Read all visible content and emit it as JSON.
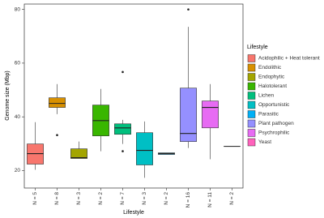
{
  "chart_data": {
    "type": "boxplot",
    "x_label": "Lifestyle",
    "y_label": "Genome size (Mbp)",
    "legend_title": "Lifestyle",
    "categories": [
      "N = 5",
      "N = 8",
      "N = 3",
      "N = 2",
      "N = 7",
      "N = 3",
      "N = 2",
      "N = 16",
      "N = 11",
      "N = 2"
    ],
    "ylim": [
      13.5,
      82
    ],
    "yticks": [
      20,
      40,
      60,
      80
    ],
    "series": [
      {
        "name": "Acidophilic + Heat tolerant",
        "color": "#F8766D",
        "min": 20.3,
        "q1": 22.4,
        "median": 26.3,
        "q3": 29.9,
        "max": 38,
        "outliers": []
      },
      {
        "name": "Endolithic",
        "color": "#D89000",
        "min": 41,
        "q1": 43.5,
        "median": 45,
        "q3": 47.1,
        "max": 52.2,
        "outliers": [
          33.2
        ]
      },
      {
        "name": "Endophytic",
        "color": "#A3A500",
        "min": 24.5,
        "q1": 24.5,
        "median": 24.8,
        "q3": 28.1,
        "max": 30.8,
        "outliers": []
      },
      {
        "name": "Halotolerant",
        "color": "#39B600",
        "min": 27.2,
        "q1": 32.9,
        "median": 38.6,
        "q3": 44.4,
        "max": 50.4,
        "outliers": []
      },
      {
        "name": "Lichen",
        "color": "#00BF7D",
        "min": 29.9,
        "q1": 33.5,
        "median": 35.9,
        "q3": 37.4,
        "max": 38.9,
        "outliers": [
          56.7,
          27.2
        ]
      },
      {
        "name": "Opportunistic",
        "color": "#00BFC4",
        "min": 17.3,
        "q1": 22.1,
        "median": 27.5,
        "q3": 34.1,
        "max": 38.3,
        "outliers": []
      },
      {
        "name": "Parasitic",
        "color": "#00B0F6",
        "min": 26,
        "q1": 26,
        "median": 26.3,
        "q3": 26.6,
        "max": 26.6,
        "outliers": []
      },
      {
        "name": "Plant pathogen",
        "color": "#9590FF",
        "min": 28.4,
        "q1": 30.8,
        "median": 33.8,
        "q3": 50.7,
        "max": 73.5,
        "outliers": [
          80
        ]
      },
      {
        "name": "Psychrophilic",
        "color": "#E76BF3",
        "min": 24.2,
        "q1": 35.9,
        "median": 43.5,
        "q3": 45.9,
        "max": 52.2,
        "outliers": []
      },
      {
        "name": "Yeast",
        "color": "#FF62BC",
        "min": 29,
        "q1": 29,
        "median": 29,
        "q3": 29,
        "max": 29,
        "outliers": []
      }
    ]
  }
}
